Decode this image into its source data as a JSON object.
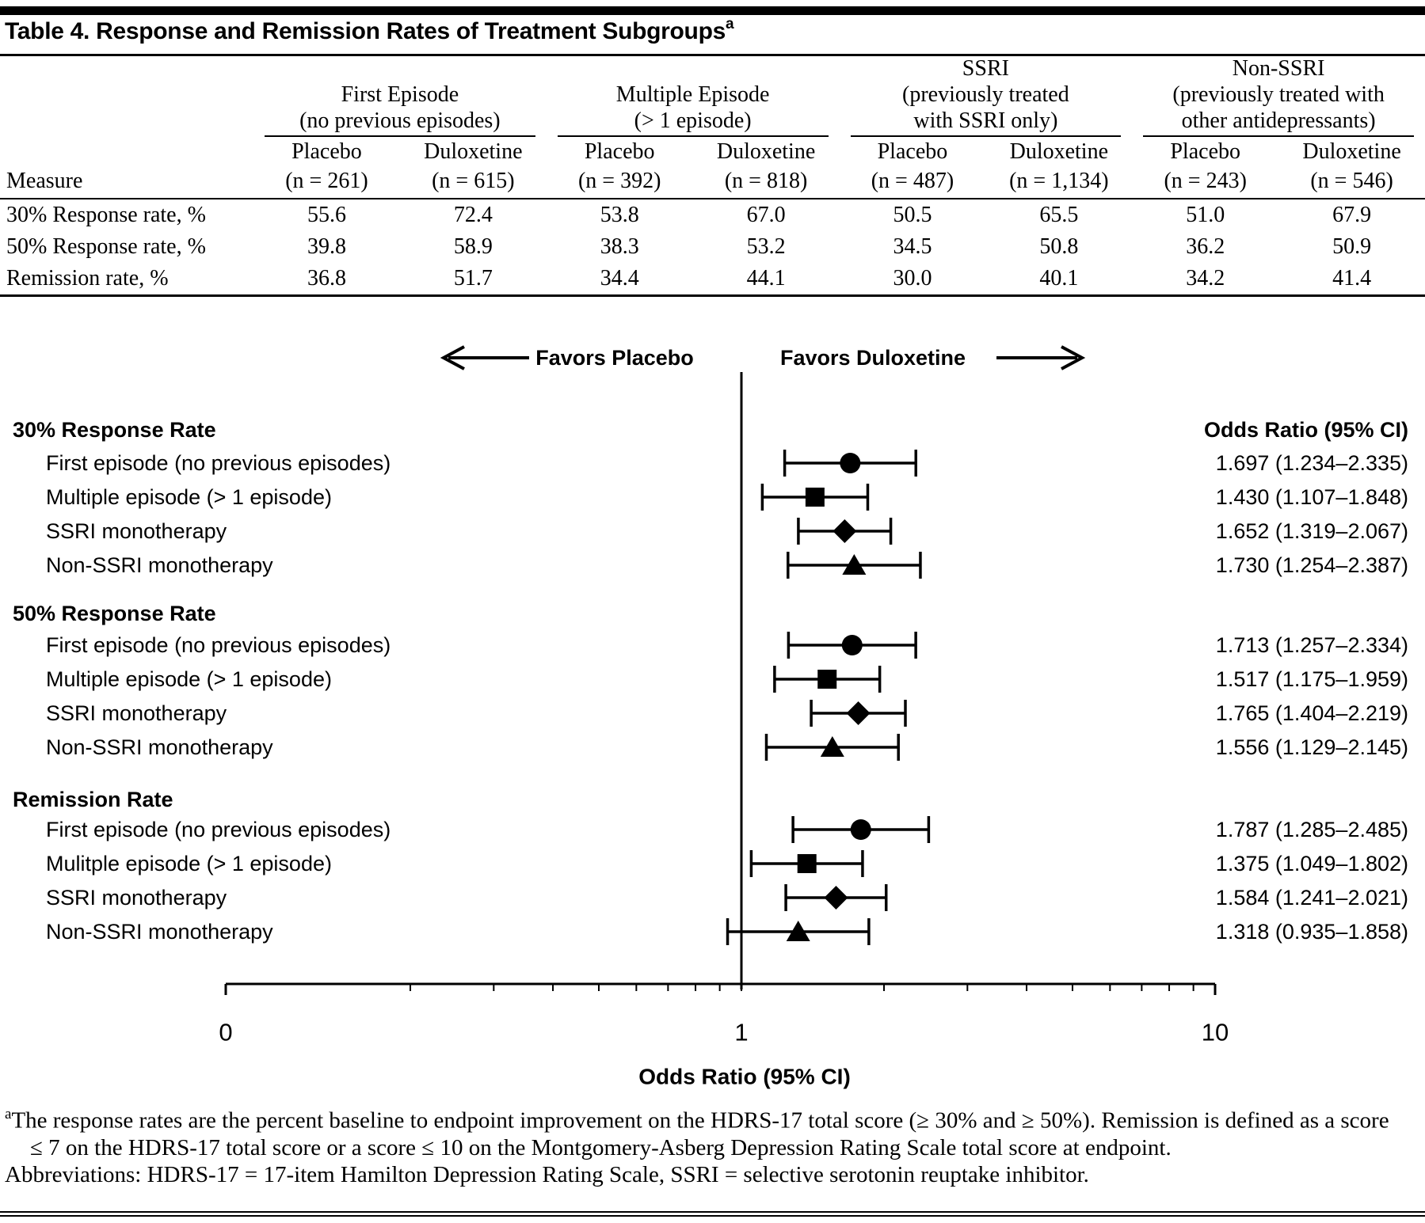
{
  "page": {
    "background": "#ffffff",
    "ink": "#000000"
  },
  "title": {
    "text": "Table 4. Response and Remission Rates of Treatment Subgroups",
    "footnote_marker": "a"
  },
  "table": {
    "measure_header": "Measure",
    "groups": [
      {
        "lines": [
          "First Episode",
          "(no previous episodes)"
        ],
        "cols": [
          {
            "drug": "Placebo",
            "n": "(n = 261)"
          },
          {
            "drug": "Duloxetine",
            "n": "(n = 615)"
          }
        ]
      },
      {
        "lines": [
          "Multiple Episode",
          "(> 1 episode)"
        ],
        "cols": [
          {
            "drug": "Placebo",
            "n": "(n = 392)"
          },
          {
            "drug": "Duloxetine",
            "n": "(n = 818)"
          }
        ]
      },
      {
        "lines": [
          "SSRI",
          "(previously treated",
          "with SSRI only)"
        ],
        "cols": [
          {
            "drug": "Placebo",
            "n": "(n = 487)"
          },
          {
            "drug": "Duloxetine",
            "n": "(n = 1,134)"
          }
        ]
      },
      {
        "lines": [
          "Non-SSRI",
          "(previously treated with",
          "other antidepressants)"
        ],
        "cols": [
          {
            "drug": "Placebo",
            "n": "(n = 243)"
          },
          {
            "drug": "Duloxetine",
            "n": "(n = 546)"
          }
        ]
      }
    ],
    "rows": [
      {
        "label": "30% Response rate, %",
        "values": [
          "55.6",
          "72.4",
          "53.8",
          "67.0",
          "50.5",
          "65.5",
          "51.0",
          "67.9"
        ]
      },
      {
        "label": "50% Response rate, %",
        "values": [
          "39.8",
          "58.9",
          "38.3",
          "53.2",
          "34.5",
          "50.8",
          "36.2",
          "50.9"
        ]
      },
      {
        "label": "Remission rate, %",
        "values": [
          "36.8",
          "51.7",
          "34.4",
          "44.1",
          "30.0",
          "40.1",
          "34.2",
          "41.4"
        ]
      }
    ]
  },
  "chart_data": {
    "type": "forest",
    "favors": {
      "left": "Favors Placebo",
      "right": "Favors Duloxetine"
    },
    "value_column_header": "Odds Ratio (95% CI)",
    "axis": {
      "label": "Odds Ratio (95% CI)",
      "scale": "log",
      "reference_line": 1,
      "tick_labels": [
        "0",
        "1",
        "10"
      ],
      "minor_ticks": [
        0.2,
        0.3,
        0.4,
        0.5,
        0.6,
        0.7,
        0.8,
        0.9,
        2,
        3,
        4,
        5,
        6,
        7,
        8,
        9
      ]
    },
    "sections": [
      {
        "header": "30% Response Rate",
        "rows": [
          {
            "label": "First episode (no previous episodes)",
            "marker": "circle",
            "or": 1.697,
            "ci_low": 1.234,
            "ci_high": 2.335,
            "display": "1.697 (1.234–2.335)"
          },
          {
            "label": "Multiple episode (> 1 episode)",
            "marker": "square",
            "or": 1.43,
            "ci_low": 1.107,
            "ci_high": 1.848,
            "display": "1.430 (1.107–1.848)"
          },
          {
            "label": "SSRI monotherapy",
            "marker": "diamond",
            "or": 1.652,
            "ci_low": 1.319,
            "ci_high": 2.067,
            "display": "1.652 (1.319–2.067)"
          },
          {
            "label": "Non-SSRI monotherapy",
            "marker": "triangle",
            "or": 1.73,
            "ci_low": 1.254,
            "ci_high": 2.387,
            "display": "1.730 (1.254–2.387)"
          }
        ]
      },
      {
        "header": "50% Response Rate",
        "rows": [
          {
            "label": "First episode (no previous episodes)",
            "marker": "circle",
            "or": 1.713,
            "ci_low": 1.257,
            "ci_high": 2.334,
            "display": "1.713 (1.257–2.334)"
          },
          {
            "label": "Multiple episode (> 1 episode)",
            "marker": "square",
            "or": 1.517,
            "ci_low": 1.175,
            "ci_high": 1.959,
            "display": "1.517 (1.175–1.959)"
          },
          {
            "label": "SSRI monotherapy",
            "marker": "diamond",
            "or": 1.765,
            "ci_low": 1.404,
            "ci_high": 2.219,
            "display": "1.765 (1.404–2.219)"
          },
          {
            "label": "Non-SSRI monotherapy",
            "marker": "triangle",
            "or": 1.556,
            "ci_low": 1.129,
            "ci_high": 2.145,
            "display": "1.556 (1.129–2.145)"
          }
        ]
      },
      {
        "header": "Remission Rate",
        "rows": [
          {
            "label": "First episode (no previous episodes)",
            "marker": "circle",
            "or": 1.787,
            "ci_low": 1.285,
            "ci_high": 2.485,
            "display": "1.787 (1.285–2.485)"
          },
          {
            "label": "Mulitple episode (> 1 episode)",
            "marker": "square",
            "or": 1.375,
            "ci_low": 1.049,
            "ci_high": 1.802,
            "display": "1.375 (1.049–1.802)"
          },
          {
            "label": "SSRI monotherapy",
            "marker": "diamond",
            "or": 1.584,
            "ci_low": 1.241,
            "ci_high": 2.021,
            "display": "1.584 (1.241–2.021)"
          },
          {
            "label": "Non-SSRI monotherapy",
            "marker": "triangle",
            "or": 1.318,
            "ci_low": 0.935,
            "ci_high": 1.858,
            "display": "1.318 (0.935–1.858)"
          }
        ]
      }
    ]
  },
  "footnotes": {
    "marker": "a",
    "note": "The response rates are the percent baseline to endpoint improvement on the HDRS-17 total score (≥ 30% and ≥ 50%). Remission is defined as a score ≤ 7 on the HDRS-17 total score or a score ≤ 10 on the Montgomery-Asberg Depression Rating Scale total score at endpoint.",
    "abbreviations": "Abbreviations: HDRS-17 = 17-item Hamilton Depression Rating Scale, SSRI = selective serotonin reuptake inhibitor."
  }
}
